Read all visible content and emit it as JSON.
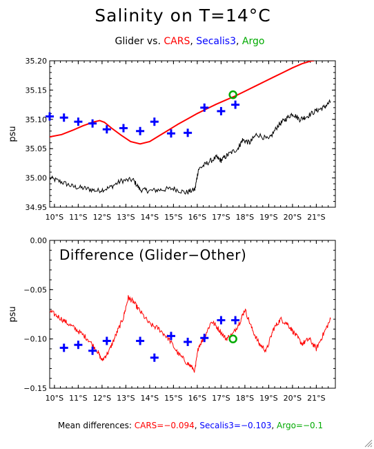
{
  "figure": {
    "title": "Salinity on T=14°C",
    "subtitle_parts": [
      {
        "text": "Glider vs. ",
        "color": "#000000"
      },
      {
        "text": "CARS",
        "color": "#ff0000"
      },
      {
        "text": ", ",
        "color": "#000000"
      },
      {
        "text": "Secalis3",
        "color": "#0000ff"
      },
      {
        "text": ", ",
        "color": "#000000"
      },
      {
        "text": "Argo",
        "color": "#00aa00"
      }
    ],
    "footer_parts": [
      {
        "text": "Mean differences: ",
        "color": "#000000"
      },
      {
        "text": "CARS=−0.094",
        "color": "#ff0000"
      },
      {
        "text": ", ",
        "color": "#000000"
      },
      {
        "text": "Secalis3=−0.103",
        "color": "#0000ff"
      },
      {
        "text": ", ",
        "color": "#000000"
      },
      {
        "text": "Argo=−0.1",
        "color": "#00aa00"
      }
    ],
    "colors": {
      "glider": "#000000",
      "cars": "#ff0000",
      "secalis3": "#0000ff",
      "argo": "#00aa00"
    }
  },
  "chart_data": [
    {
      "type": "line",
      "ylabel": "psu",
      "xlabel": "",
      "x_unit": "latitude (°S)",
      "xlim": [
        9.8,
        21.8
      ],
      "ylim": [
        34.95,
        35.2
      ],
      "x_ticks": [
        10,
        11,
        12,
        13,
        14,
        15,
        16,
        17,
        18,
        19,
        20,
        21
      ],
      "x_tick_labels": [
        "10°S",
        "11°S",
        "12°S",
        "13°S",
        "14°S",
        "15°S",
        "16°S",
        "17°S",
        "18°S",
        "19°S",
        "20°S",
        "21°S"
      ],
      "y_ticks": [
        34.95,
        35.0,
        35.05,
        35.1,
        35.15,
        35.2
      ],
      "y_tick_labels": [
        "34.95",
        "35.00",
        "35.05",
        "35.10",
        "35.15",
        "35.20"
      ],
      "grid": false,
      "series": [
        {
          "name": "CARS",
          "key": "cars",
          "style": "line",
          "x": [
            9.8,
            10.3,
            10.8,
            11.2,
            11.6,
            11.9,
            12.1,
            12.4,
            12.8,
            13.2,
            13.6,
            14.0,
            14.4,
            14.8,
            15.2,
            15.6,
            16.0,
            16.4,
            16.8,
            17.2,
            17.6,
            18.0,
            18.4,
            18.8,
            19.2,
            19.6,
            20.0,
            20.4,
            20.8,
            20.9
          ],
          "y": [
            35.07,
            35.074,
            35.082,
            35.089,
            35.095,
            35.098,
            35.095,
            35.085,
            35.073,
            35.062,
            35.058,
            35.062,
            35.072,
            35.082,
            35.092,
            35.101,
            35.11,
            35.118,
            35.126,
            35.133,
            35.14,
            35.148,
            35.156,
            35.164,
            35.172,
            35.18,
            35.188,
            35.195,
            35.2,
            35.2
          ]
        },
        {
          "name": "Secalis3",
          "key": "secalis3",
          "style": "plus",
          "x": [
            9.8,
            10.4,
            11.0,
            11.6,
            12.2,
            12.9,
            13.6,
            14.2,
            14.9,
            15.6,
            16.3,
            17.0,
            17.6
          ],
          "y": [
            35.105,
            35.103,
            35.096,
            35.093,
            35.083,
            35.085,
            35.08,
            35.096,
            35.076,
            35.077,
            35.12,
            35.114,
            35.125
          ]
        },
        {
          "name": "Argo",
          "key": "argo",
          "style": "circle",
          "x": [
            17.5
          ],
          "y": [
            35.142
          ]
        },
        {
          "name": "Glider",
          "key": "glider",
          "style": "noisy-line",
          "x": [
            9.8,
            10.3,
            10.8,
            11.3,
            11.8,
            12.3,
            12.8,
            13.3,
            13.6,
            14.0,
            14.5,
            15.0,
            15.5,
            15.9,
            16.05,
            16.4,
            16.8,
            17.0,
            17.3,
            17.7,
            17.9,
            18.2,
            18.5,
            19.0,
            19.4,
            19.7,
            20.0,
            20.3,
            20.6,
            21.0,
            21.3,
            21.6
          ],
          "y": [
            35.0,
            34.993,
            34.985,
            34.982,
            34.978,
            34.983,
            34.995,
            34.997,
            34.98,
            34.978,
            34.98,
            34.982,
            34.975,
            34.98,
            35.015,
            35.025,
            35.035,
            35.03,
            35.04,
            35.05,
            35.065,
            35.06,
            35.075,
            35.065,
            35.09,
            35.1,
            35.11,
            35.1,
            35.105,
            35.115,
            35.12,
            35.13
          ]
        }
      ]
    },
    {
      "type": "line",
      "title": "Difference (Glider−Other)",
      "ylabel": "psu",
      "xlabel": "",
      "x_unit": "latitude (°S)",
      "xlim": [
        9.8,
        21.8
      ],
      "ylim": [
        -0.15,
        0.0
      ],
      "x_ticks": [
        10,
        11,
        12,
        13,
        14,
        15,
        16,
        17,
        18,
        19,
        20,
        21
      ],
      "x_tick_labels": [
        "10°S",
        "11°S",
        "12°S",
        "13°S",
        "14°S",
        "15°S",
        "16°S",
        "17°S",
        "18°S",
        "19°S",
        "20°S",
        "21°S"
      ],
      "y_ticks": [
        -0.15,
        -0.1,
        -0.05,
        0.0
      ],
      "y_tick_labels": [
        "−0.15",
        "−0.10",
        "−0.05",
        "0.00"
      ],
      "grid": false,
      "series": [
        {
          "name": "CARS",
          "key": "cars",
          "style": "noisy-line",
          "x": [
            9.8,
            10.2,
            10.6,
            11.0,
            11.4,
            11.8,
            12.0,
            12.3,
            12.6,
            12.9,
            13.1,
            13.3,
            13.6,
            14.0,
            14.4,
            14.8,
            15.2,
            15.6,
            15.9,
            16.05,
            16.3,
            16.6,
            16.9,
            17.2,
            17.5,
            17.8,
            18.0,
            18.3,
            18.6,
            18.9,
            19.2,
            19.5,
            19.8,
            20.1,
            20.4,
            20.7,
            21.0,
            21.3,
            21.6
          ],
          "y": [
            -0.072,
            -0.078,
            -0.085,
            -0.092,
            -0.1,
            -0.112,
            -0.122,
            -0.112,
            -0.095,
            -0.078,
            -0.058,
            -0.062,
            -0.072,
            -0.085,
            -0.09,
            -0.1,
            -0.115,
            -0.125,
            -0.132,
            -0.108,
            -0.098,
            -0.082,
            -0.09,
            -0.1,
            -0.095,
            -0.082,
            -0.07,
            -0.09,
            -0.105,
            -0.112,
            -0.09,
            -0.08,
            -0.085,
            -0.095,
            -0.105,
            -0.1,
            -0.11,
            -0.095,
            -0.08
          ]
        },
        {
          "name": "Secalis3",
          "key": "secalis3",
          "style": "plus",
          "x": [
            10.4,
            11.0,
            11.6,
            12.2,
            13.6,
            14.2,
            14.9,
            15.6,
            16.3,
            17.0,
            17.6
          ],
          "y": [
            -0.109,
            -0.106,
            -0.112,
            -0.102,
            -0.102,
            -0.119,
            -0.097,
            -0.103,
            -0.099,
            -0.081,
            -0.081
          ]
        },
        {
          "name": "Argo",
          "key": "argo",
          "style": "circle",
          "x": [
            17.5
          ],
          "y": [
            -0.1
          ]
        }
      ]
    }
  ]
}
